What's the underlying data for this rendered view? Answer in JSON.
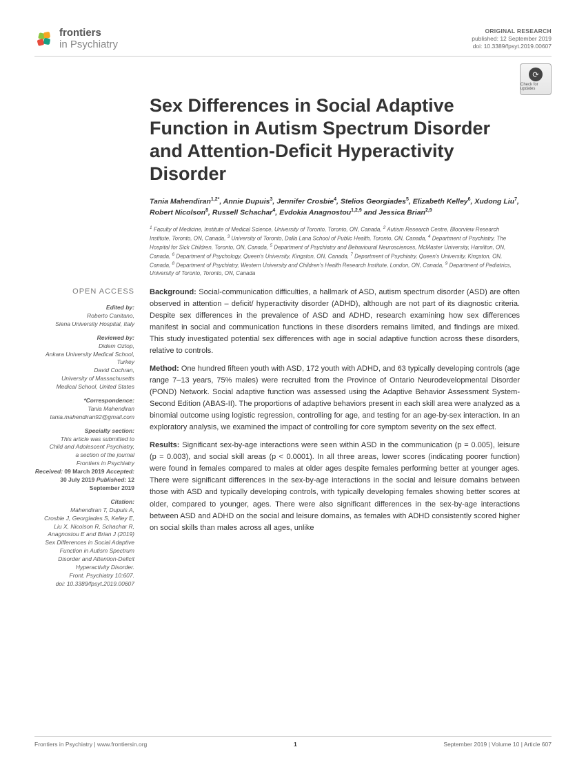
{
  "journal": {
    "name_bold": "frontiers",
    "name_light": "in Psychiatry"
  },
  "pubinfo": {
    "type": "ORIGINAL RESEARCH",
    "published": "published: 12 September 2019",
    "doi": "doi: 10.3389/fpsyt.2019.00607"
  },
  "updates_label": "Check for updates",
  "title": "Sex Differences in Social Adaptive Function in Autism Spectrum Disorder and Attention-Deficit Hyperactivity Disorder",
  "authors_html": "Tania Mahendiran<sup>1,2*</sup>, Annie Dupuis<sup>3</sup>, Jennifer Crosbie<sup>4</sup>, Stelios Georgiades<sup>5</sup>, Elizabeth Kelley<sup>6</sup>, Xudong Liu<sup>7</sup>, Robert Nicolson<sup>8</sup>, Russell Schachar<sup>4</sup>, Evdokia Anagnostou<sup>1,2,9</sup> and Jessica Brian<sup>2,9</sup>",
  "affiliations_html": "<sup>1</sup> Faculty of Medicine, Institute of Medical Science, University of Toronto, Toronto, ON, Canada, <sup>2</sup> Autism Research Centre, Bloorview Research Institute, Toronto, ON, Canada, <sup>3</sup> University of Toronto, Dalla Lana School of Public Health, Toronto, ON, Canada, <sup>4</sup> Department of Psychiatry, The Hospital for Sick Children, Toronto, ON, Canada, <sup>5</sup> Department of Psychiatry and Behavioural Neurosciences, McMaster University, Hamilton, ON, Canada, <sup>6</sup> Department of Psychology, Queen's University, Kingston, ON, Canada, <sup>7</sup> Department of Psychiatry, Queen's University, Kingston, ON, Canada, <sup>8</sup> Department of Psychiatry, Western University and Children's Health Research Institute, London, ON, Canada, <sup>9</sup> Department of Pediatrics, University of Toronto, Toronto, ON, Canada",
  "sidebar": {
    "open_access": "OPEN ACCESS",
    "edited_by_h": "Edited by:",
    "edited_by": "Roberto Canitano,\nSiena University Hospital, Italy",
    "reviewed_by_h": "Reviewed by:",
    "reviewed_by": "Didem Oztop,\nAnkara University Medical School,\nTurkey\nDavid Cochran,\nUniversity of Massachusetts\nMedical School, United States",
    "correspondence_h": "*Correspondence:",
    "correspondence": "Tania Mahendiran\ntania.mahendiran92@gmail.com",
    "specialty_h": "Specialty section:",
    "specialty": "This article was submitted to\nChild and Adolescent Psychiatry,\na section of the journal\nFrontiers in Psychiatry",
    "received": "Received: 09 March 2019",
    "accepted": "Accepted: 30 July 2019",
    "published": "Published: 12 September 2019",
    "citation_h": "Citation:",
    "citation": "Mahendiran T, Dupuis A,\nCrosbie J, Georgiades S, Kelley E,\nLiu X, Nicolson R, Schachar R,\nAnagnostou E and Brian J (2019)\nSex Differences in Social Adaptive\nFunction in Autism Spectrum\nDisorder and Attention-Deficit\nHyperactivity Disorder.\nFront. Psychiatry 10:607.\ndoi: 10.3389/fpsyt.2019.00607"
  },
  "abstract": {
    "background_label": "Background:",
    "background": " Social-communication difficulties, a hallmark of ASD, autism spectrum disorder (ASD) are often observed in attention – deficit/ hyperactivity disorder (ADHD), although are not part of its diagnostic criteria. Despite sex differences in the prevalence of ASD and ADHD, research examining how sex differences manifest in social and communication functions in these disorders remains limited, and findings are mixed. This study investigated potential sex differences with age in social adaptive function across these disorders, relative to controls.",
    "method_label": "Method:",
    "method": " One hundred fifteen youth with ASD, 172 youth with ADHD, and 63 typically developing controls (age range 7–13 years, 75% males) were recruited from the Province of Ontario Neurodevelopmental Disorder (POND) Network. Social adaptive function was assessed using the Adaptive Behavior Assessment System-Second Edition (ABAS-II). The proportions of adaptive behaviors present in each skill area were analyzed as a binomial outcome using logistic regression, controlling for age, and testing for an age-by-sex interaction. In an exploratory analysis, we examined the impact of controlling for core symptom severity on the sex effect.",
    "results_label": "Results:",
    "results": " Significant sex-by-age interactions were seen within ASD in the communication (p = 0.005), leisure (p = 0.003), and social skill areas (p < 0.0001). In all three areas, lower scores (indicating poorer function) were found in females compared to males at older ages despite females performing better at younger ages. There were significant differences in the sex-by-age interactions in the social and leisure domains between those with ASD and typically developing controls, with typically developing females showing better scores at older, compared to younger, ages. There were also significant differences in the sex-by-age interactions between ASD and ADHD on the social and leisure domains, as females with ADHD consistently scored higher on social skills than males across all ages, unlike"
  },
  "footer": {
    "left": "Frontiers in Psychiatry | www.frontiersin.org",
    "page": "1",
    "right": "September 2019 | Volume 10 | Article 607"
  },
  "colors": {
    "logo1": "#8bc53f",
    "logo2": "#f6a623",
    "logo3": "#e74c3c",
    "logo4": "#16a085"
  }
}
